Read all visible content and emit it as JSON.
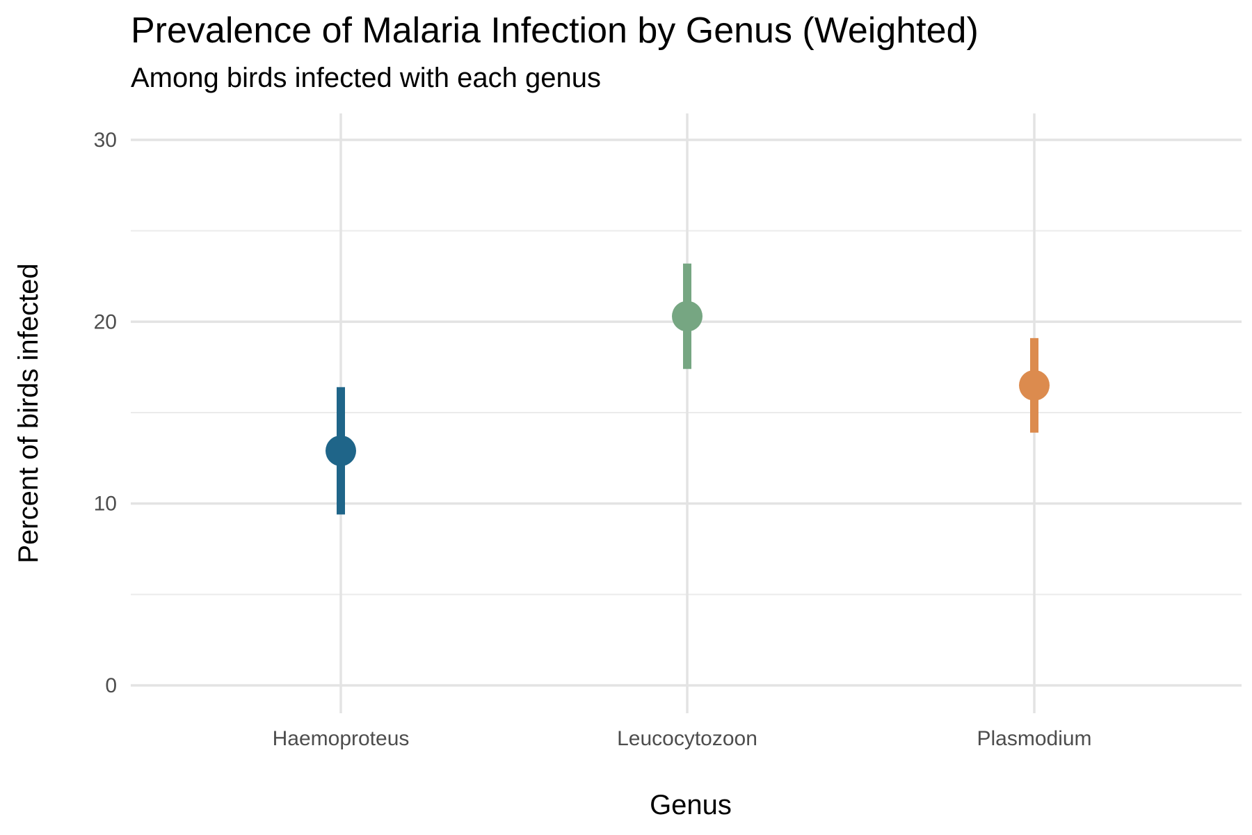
{
  "chart_data": {
    "type": "scatter",
    "title": "Prevalence of Malaria Infection by Genus (Weighted)",
    "subtitle": "Among birds infected with each genus",
    "xlabel": "Genus",
    "ylabel": "Percent of birds infected",
    "categories": [
      "Haemoproteus",
      "Leucocytozoon",
      "Plasmodium"
    ],
    "points": [
      {
        "category": "Haemoproteus",
        "value": 12.9,
        "lower": 9.4,
        "upper": 16.4,
        "color": "#1f6589"
      },
      {
        "category": "Leucocytozoon",
        "value": 20.3,
        "lower": 17.4,
        "upper": 23.2,
        "color": "#76a682"
      },
      {
        "category": "Plasmodium",
        "value": 16.5,
        "lower": 13.9,
        "upper": 19.1,
        "color": "#dc8b4e"
      }
    ],
    "ylim": [
      0,
      30
    ],
    "yticks": [
      0,
      10,
      20,
      30
    ],
    "grid": true,
    "legend": "none"
  }
}
